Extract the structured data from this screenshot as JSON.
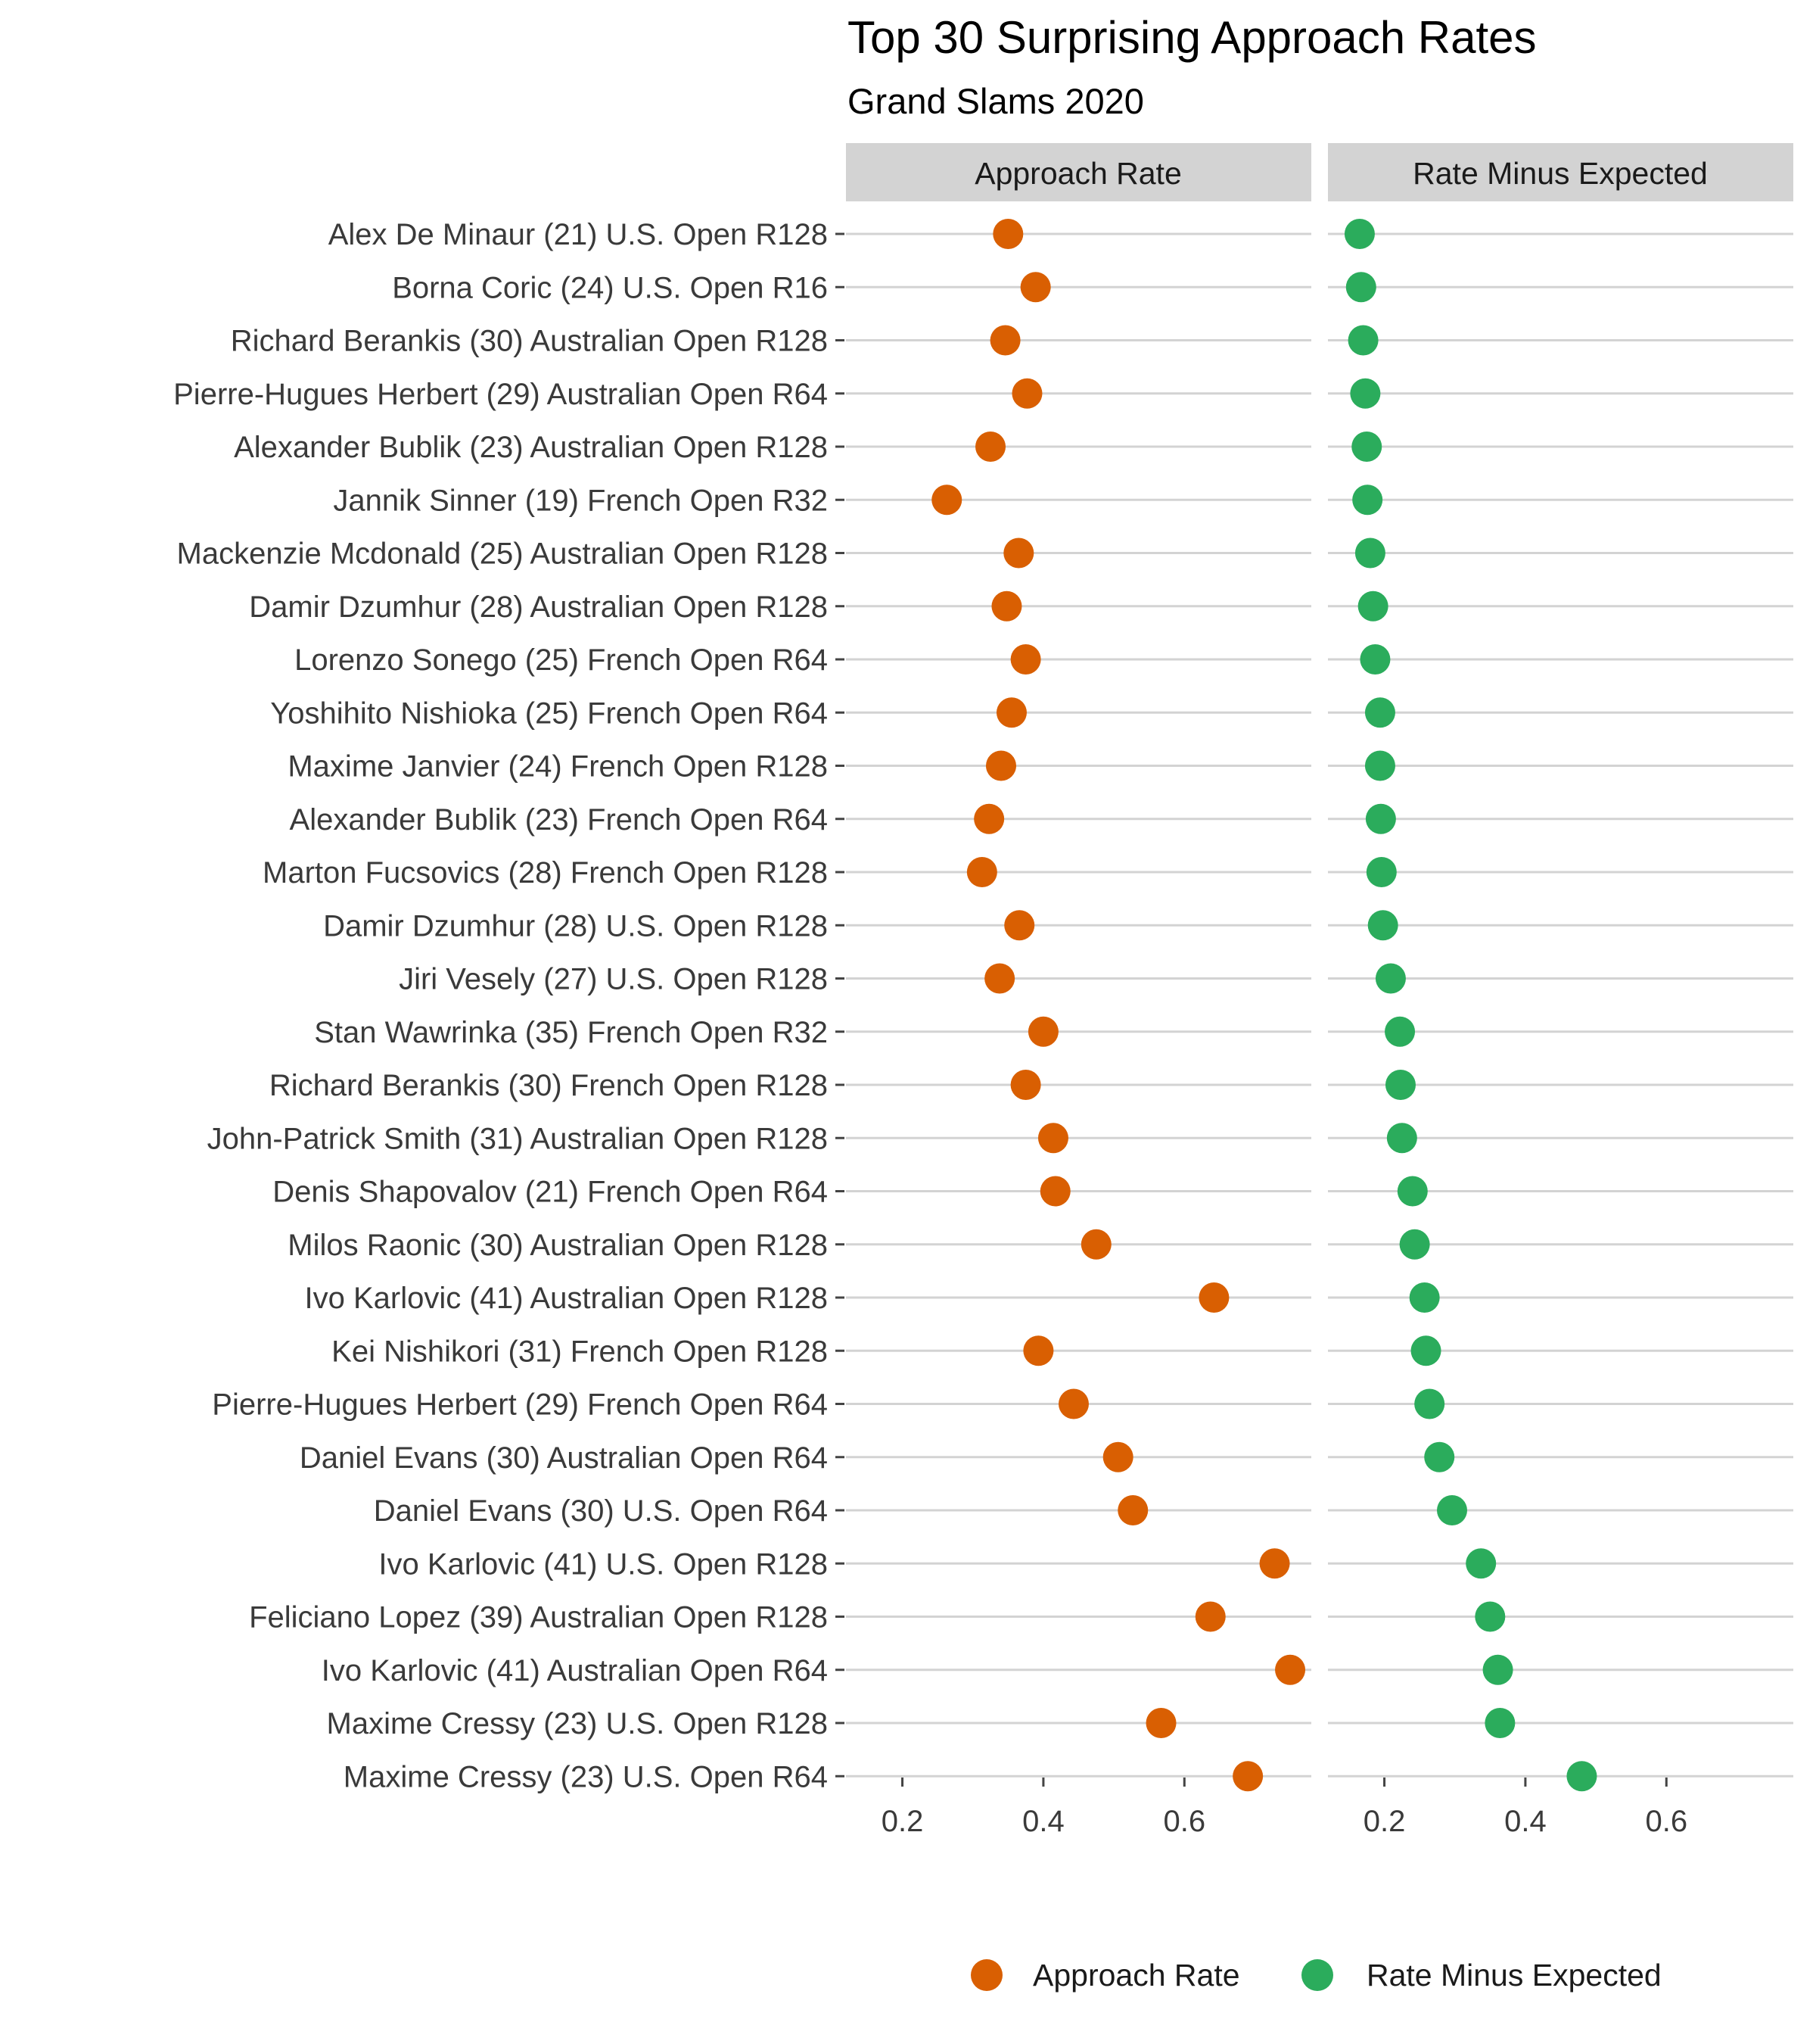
{
  "chart_data": {
    "type": "scatter",
    "title": "Top 30 Surprising Approach Rates",
    "subtitle": "Grand Slams 2020",
    "facets": [
      "Approach Rate",
      "Rate Minus Expected"
    ],
    "xlim": [
      0.12,
      0.78
    ],
    "x_ticks": [
      0.2,
      0.4,
      0.6
    ],
    "x_tick_labels": [
      "0.2",
      "0.4",
      "0.6"
    ],
    "grid": true,
    "legend_position": "bottom",
    "categories": [
      "Alex De Minaur (21) U.S. Open R128",
      "Borna Coric (24) U.S. Open R16",
      "Richard Berankis (30) Australian Open R128",
      "Pierre-Hugues Herbert (29) Australian Open R64",
      "Alexander Bublik (23) Australian Open R128",
      "Jannik Sinner (19) French Open R32",
      "Mackenzie Mcdonald (25) Australian Open R128",
      "Damir Dzumhur (28) Australian Open R128",
      "Lorenzo Sonego (25) French Open R64",
      "Yoshihito Nishioka (25) French Open R64",
      "Maxime Janvier (24) French Open R128",
      "Alexander Bublik (23) French Open R64",
      "Marton Fucsovics (28) French Open R128",
      "Damir Dzumhur (28) U.S. Open R128",
      "Jiri Vesely (27) U.S. Open R128",
      "Stan Wawrinka (35) French Open R32",
      "Richard Berankis (30) French Open R128",
      "John-Patrick Smith (31) Australian Open R128",
      "Denis Shapovalov (21) French Open R64",
      "Milos Raonic (30) Australian Open R128",
      "Ivo Karlovic (41) Australian Open R128",
      "Kei Nishikori (31) French Open R128",
      "Pierre-Hugues Herbert (29) French Open R64",
      "Daniel Evans (30) Australian Open R64",
      "Daniel Evans (30) U.S. Open R64",
      "Ivo Karlovic (41) U.S. Open R128",
      "Feliciano Lopez (39) Australian Open R128",
      "Ivo Karlovic (41) Australian Open R64",
      "Maxime Cressy (23) U.S. Open R128",
      "Maxime Cressy (23) U.S. Open R64"
    ],
    "series": [
      {
        "name": "Approach Rate",
        "color": "#d95f02",
        "values": [
          0.35,
          0.389,
          0.346,
          0.377,
          0.325,
          0.263,
          0.365,
          0.348,
          0.375,
          0.355,
          0.34,
          0.323,
          0.313,
          0.366,
          0.338,
          0.4,
          0.375,
          0.414,
          0.417,
          0.475,
          0.642,
          0.393,
          0.443,
          0.506,
          0.527,
          0.728,
          0.637,
          0.75,
          0.567,
          0.69
        ]
      },
      {
        "name": "Rate Minus Expected",
        "color": "#2bac5c",
        "values": [
          0.165,
          0.167,
          0.17,
          0.173,
          0.175,
          0.176,
          0.18,
          0.184,
          0.187,
          0.194,
          0.194,
          0.195,
          0.196,
          0.198,
          0.209,
          0.222,
          0.223,
          0.225,
          0.24,
          0.243,
          0.257,
          0.259,
          0.264,
          0.278,
          0.296,
          0.337,
          0.35,
          0.361,
          0.364,
          0.48
        ]
      }
    ]
  }
}
